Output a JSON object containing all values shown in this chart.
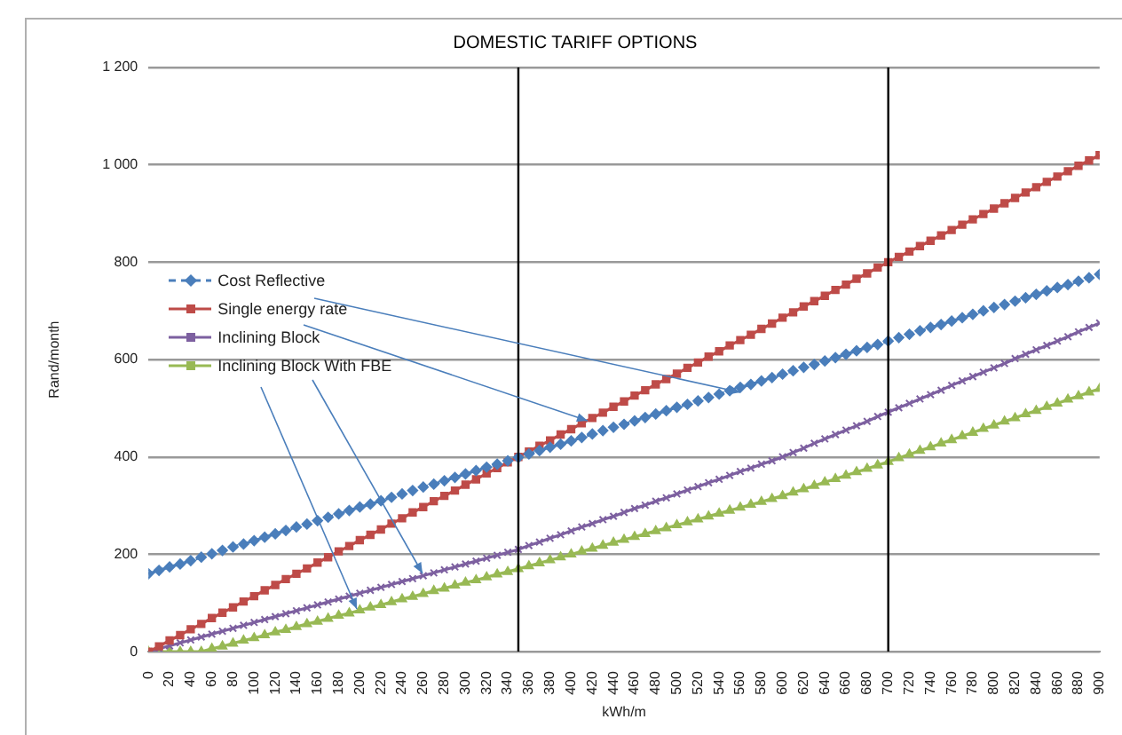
{
  "chart_data": {
    "type": "line",
    "title": "DOMESTIC TARIFF OPTIONS",
    "xlabel": "kWh/m",
    "ylabel": "Rand/month",
    "x": [
      0,
      10,
      20,
      30,
      40,
      50,
      60,
      70,
      80,
      90,
      100,
      110,
      120,
      130,
      140,
      150,
      160,
      170,
      180,
      190,
      200,
      210,
      220,
      230,
      240,
      250,
      260,
      270,
      280,
      290,
      300,
      310,
      320,
      330,
      340,
      350,
      360,
      370,
      380,
      390,
      400,
      410,
      420,
      430,
      440,
      450,
      460,
      470,
      480,
      490,
      500,
      510,
      520,
      530,
      540,
      550,
      560,
      570,
      580,
      590,
      600,
      610,
      620,
      630,
      640,
      650,
      660,
      670,
      680,
      690,
      700,
      710,
      720,
      730,
      740,
      750,
      760,
      770,
      780,
      790,
      800,
      810,
      820,
      830,
      840,
      850,
      860,
      870,
      880,
      890,
      900
    ],
    "xlim": [
      0,
      900
    ],
    "xticks": [
      0,
      20,
      40,
      60,
      80,
      100,
      120,
      140,
      160,
      180,
      200,
      220,
      240,
      260,
      280,
      300,
      320,
      340,
      360,
      380,
      400,
      420,
      440,
      460,
      480,
      500,
      520,
      540,
      560,
      580,
      600,
      620,
      640,
      660,
      680,
      700,
      720,
      740,
      760,
      780,
      800,
      820,
      840,
      860,
      880,
      900
    ],
    "ylim": [
      0,
      1200
    ],
    "yticks": [
      0,
      200,
      400,
      600,
      800,
      {
        "value": 1000,
        "label": "1 000"
      },
      {
        "value": 1200,
        "label": "1 200"
      }
    ],
    "grid": "y",
    "legend": "left",
    "series": [
      {
        "name": "Cost Reflective",
        "color": "#4a7ebb",
        "marker": "diamond",
        "line_style": "dashed",
        "values": [
          160,
          167,
          174,
          180,
          187,
          194,
          201,
          208,
          215,
          221,
          228,
          235,
          242,
          249,
          256,
          262,
          269,
          276,
          283,
          290,
          297,
          303,
          310,
          317,
          324,
          331,
          338,
          344,
          351,
          358,
          365,
          372,
          379,
          385,
          392,
          399,
          406,
          413,
          420,
          426,
          433,
          440,
          447,
          454,
          461,
          467,
          474,
          481,
          488,
          495,
          502,
          508,
          515,
          522,
          529,
          536,
          543,
          549,
          556,
          563,
          570,
          577,
          584,
          590,
          597,
          604,
          611,
          618,
          625,
          631,
          638,
          645,
          652,
          659,
          666,
          672,
          679,
          686,
          693,
          700,
          707,
          713,
          720,
          727,
          734,
          741,
          748,
          754,
          761,
          768,
          775
        ]
      },
      {
        "name": "Single energy rate",
        "color": "#be4b48",
        "marker": "square",
        "line_style": "solid",
        "values": [
          0,
          11,
          23,
          34,
          46,
          57,
          69,
          80,
          91,
          103,
          114,
          126,
          137,
          149,
          160,
          171,
          183,
          194,
          206,
          217,
          229,
          240,
          251,
          263,
          274,
          286,
          297,
          309,
          320,
          331,
          343,
          354,
          366,
          377,
          389,
          400,
          411,
          423,
          434,
          446,
          457,
          469,
          480,
          491,
          503,
          514,
          526,
          537,
          549,
          560,
          571,
          583,
          594,
          606,
          617,
          629,
          640,
          651,
          663,
          674,
          686,
          697,
          709,
          720,
          731,
          743,
          754,
          766,
          777,
          789,
          800,
          811,
          822,
          833,
          844,
          855,
          866,
          877,
          888,
          899,
          910,
          921,
          932,
          943,
          954,
          965,
          976,
          987,
          998,
          1009,
          1020
        ]
      },
      {
        "name": "Inclining Block",
        "color": "#7d60a0",
        "marker": "cross",
        "line_style": "solid",
        "values": [
          0,
          6,
          12,
          18,
          24,
          30,
          36,
          42,
          48,
          54,
          60,
          66,
          72,
          78,
          84,
          90,
          96,
          102,
          108,
          114,
          120,
          126,
          132,
          138,
          144,
          150,
          156,
          162,
          168,
          174,
          180,
          186,
          192,
          198,
          204,
          210,
          218,
          225,
          233,
          240,
          248,
          256,
          263,
          271,
          278,
          286,
          294,
          301,
          309,
          316,
          324,
          332,
          339,
          347,
          354,
          362,
          370,
          377,
          385,
          392,
          400,
          409,
          418,
          428,
          437,
          446,
          455,
          464,
          473,
          483,
          492,
          501,
          510,
          519,
          528,
          537,
          547,
          556,
          565,
          574,
          583,
          592,
          602,
          611,
          620,
          629,
          638,
          647,
          657,
          666,
          675
        ]
      },
      {
        "name": "Inclining Block With FBE",
        "color": "#98b954",
        "marker": "triangle",
        "line_style": "solid",
        "values": [
          0,
          0,
          0,
          0,
          0,
          0,
          6,
          11,
          17,
          23,
          28,
          34,
          40,
          45,
          51,
          57,
          62,
          68,
          74,
          79,
          85,
          91,
          96,
          102,
          108,
          113,
          119,
          125,
          130,
          136,
          142,
          147,
          153,
          159,
          164,
          170,
          176,
          182,
          188,
          194,
          200,
          206,
          212,
          218,
          224,
          230,
          236,
          242,
          248,
          254,
          260,
          266,
          272,
          278,
          284,
          290,
          296,
          302,
          308,
          314,
          320,
          327,
          334,
          341,
          348,
          355,
          362,
          369,
          376,
          383,
          390,
          398,
          405,
          413,
          420,
          428,
          435,
          443,
          450,
          458,
          465,
          473,
          480,
          488,
          495,
          503,
          510,
          518,
          525,
          533,
          540
        ]
      }
    ],
    "ref_lines": [
      {
        "axis": "x",
        "value": 350,
        "color": "#000000"
      },
      {
        "axis": "x",
        "value": 700,
        "color": "#000000"
      }
    ]
  }
}
